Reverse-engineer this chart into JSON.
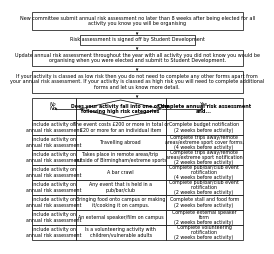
{
  "bg_color": "#ffffff",
  "text_color": "#000000",
  "box1_text": "New committee submit annual risk assessment no later than 8 weeks after being elected for all\nactivity you know you will be organising",
  "box2_text": "Risk assessment is signed off by Student Development",
  "box3_text": "Update annual risk assessment throughout the year with all activity you did not know you would be\norganising when you were elected and submit to Student Development.",
  "box4_text": "If your activity is classed as low risk then you do not need to complete any other forms apart from\nyour annual risk assessment. If your activity is classed as high risk you will need to complete additional\nforms and let us know more detail.",
  "diamond_text": "Does your activity fall into one of the\nfollowing high risk categories",
  "table_header_mid": "Does your activity fall into one of the\nfollowing high risk categories",
  "table_header_right": "Complete annual risk assessment\nand...",
  "rows": [
    {
      "left": "Include activity on\nannual risk assessment",
      "mid": "The event costs £200 or more in total or\n£20 or more for an individual item",
      "right": "Complete budget notification\n(2 weeks before activity)"
    },
    {
      "left": "Include activity on\nannual risk assessment",
      "mid": "Travelling abroad",
      "right": "Complete trips away/remote\nareas/extreme sport cover forms.\n(4 weeks before activity)"
    },
    {
      "left": "Include activity on\nannual risk assessment",
      "mid": "Takes place in remote areas/trip\noutside of Birmingham/extreme sports",
      "right": "Complete trips away/remote\nareas/extreme sport notification\n(2 weeks before activity)"
    },
    {
      "left": "Include activity on\nannual risk assessment",
      "mid": "A bar crawl",
      "right": "Complete pub/bar/club event\nnotification\n(4 weeks before activity)"
    },
    {
      "left": "Include activity on\nannual risk assessment",
      "mid": "Any event that is held in a\npub/bar/club",
      "right": "Complete pub/bar/club event\nnotification\n(2 weeks before activity)"
    },
    {
      "left": "Include activity on\nannual risk assessment",
      "mid": "Bringing food onto campus or making\nit/cooking it on campus.",
      "right": "Complete stall and food form\n(2 weeks before activity)"
    },
    {
      "left": "Include activity on\nannual risk assessment",
      "mid": "An external speaker/film on campus",
      "right": "Complete external speaker\nform\n(2 weeks before activity)"
    },
    {
      "left": "Include activity on\nannual risk assessment",
      "mid": "Is a volunteering activity with\nchildren/vulnerable adults",
      "right": "Complete volunteering\nnotification\n(2 weeks before activity)"
    }
  ],
  "lw": 0.5,
  "fs_main": 3.8,
  "fs_small": 3.4,
  "fs_bold": 3.6
}
